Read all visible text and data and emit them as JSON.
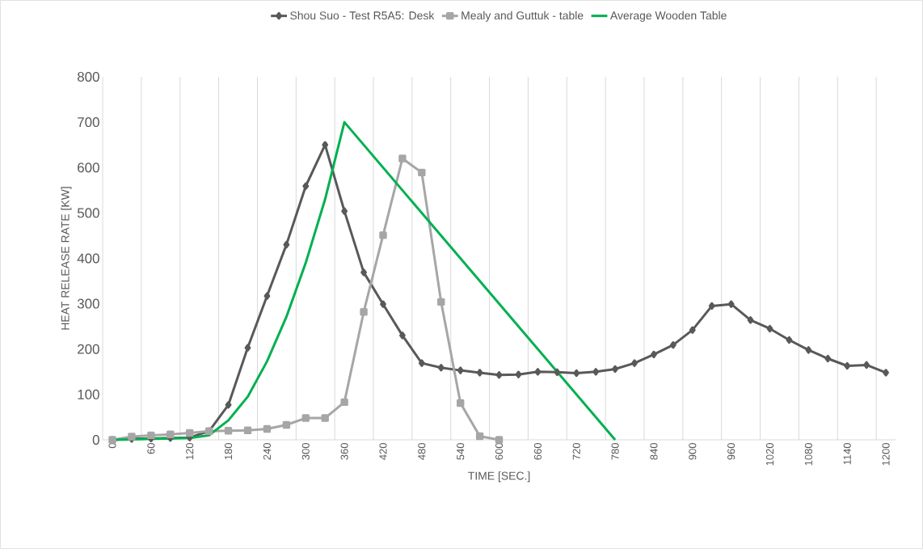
{
  "chart_data": {
    "type": "line",
    "xlabel": "TIME [SEC.]",
    "ylabel": "HEAT RELEASE RATE [KW]",
    "categories": [
      "0",
      null,
      "60",
      null,
      "120",
      null,
      "180",
      null,
      "240",
      null,
      "300",
      null,
      "360",
      null,
      "420",
      null,
      "480",
      null,
      "540",
      null,
      "600",
      null,
      "660",
      null,
      "720",
      null,
      "780",
      null,
      "840",
      null,
      "900",
      null,
      "960",
      null,
      "1020",
      null,
      "1080",
      null,
      "1140",
      null,
      "1200"
    ],
    "series": [
      {
        "name": "Shou Suo - Test R5A5: Desk",
        "color": "#595959",
        "marker": "diamond",
        "values": [
          0,
          2,
          3,
          4,
          5,
          19,
          77,
          203,
          317,
          430,
          559,
          650,
          504,
          369,
          299,
          230,
          169,
          159,
          153,
          148,
          143,
          144,
          150,
          149,
          147,
          150,
          156,
          169,
          188,
          209,
          242,
          295,
          299,
          264,
          245,
          220,
          198,
          179,
          163,
          165,
          148
        ]
      },
      {
        "name": "Mealy and Guttuk - table",
        "color": "#a6a6a6",
        "marker": "square",
        "values": [
          0,
          7,
          10,
          12,
          15,
          19,
          20,
          21,
          24,
          33,
          48,
          48,
          83,
          282,
          451,
          620,
          589,
          304,
          81,
          8,
          0,
          null,
          null,
          null,
          null,
          null,
          null,
          null,
          null,
          null,
          null,
          null,
          null,
          null,
          null,
          null,
          null,
          null,
          null,
          null,
          null
        ]
      },
      {
        "name": "Average Wooden Table",
        "color": "#00b050",
        "marker": "none",
        "values": [
          0,
          1,
          2,
          3,
          4,
          10,
          43,
          95,
          173,
          271,
          390,
          530,
          700,
          null,
          null,
          null,
          null,
          null,
          null,
          null,
          null,
          null,
          null,
          null,
          null,
          null,
          0,
          null,
          null,
          null,
          null,
          null,
          null,
          null,
          null,
          null,
          null,
          null,
          null,
          null,
          null
        ]
      }
    ],
    "ylim": [
      0,
      800
    ],
    "yticks": [
      0,
      100,
      200,
      300,
      400,
      500,
      600,
      700,
      800
    ],
    "grid": "x",
    "legend": "top"
  }
}
